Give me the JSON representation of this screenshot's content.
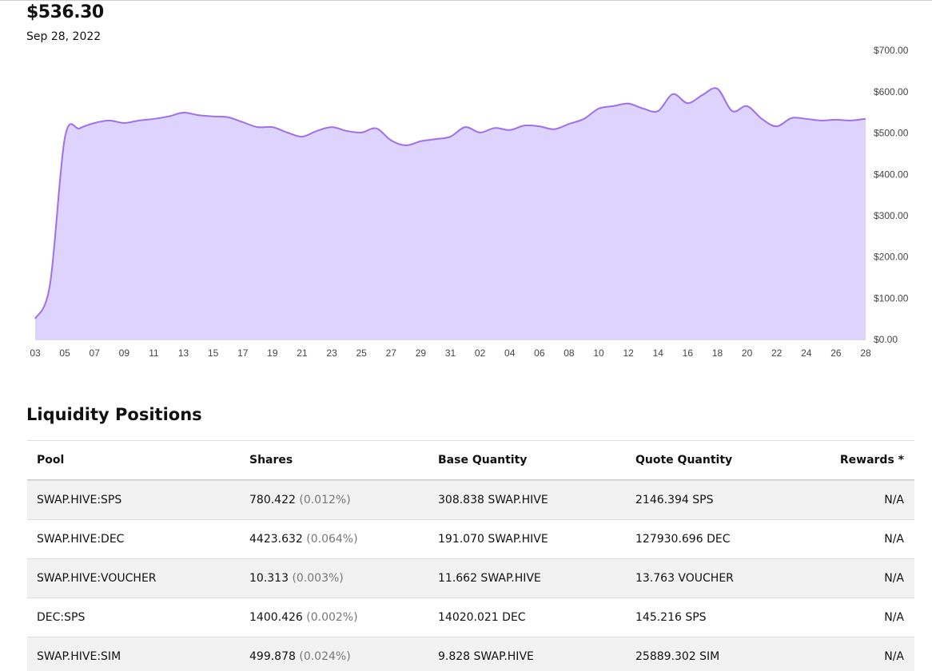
{
  "header": {
    "value": "$536.30",
    "date": "Sep 28, 2022"
  },
  "chart_data": {
    "type": "area",
    "categories": [
      "03",
      null,
      "05",
      null,
      "07",
      null,
      "09",
      null,
      "11",
      null,
      "13",
      null,
      "15",
      null,
      "17",
      null,
      "19",
      null,
      "21",
      null,
      "23",
      null,
      "25",
      null,
      "27",
      null,
      "29",
      null,
      "31",
      null,
      "02",
      null,
      "04",
      null,
      "06",
      null,
      "08",
      null,
      "10",
      null,
      "12",
      null,
      "14",
      null,
      "16",
      null,
      "18",
      null,
      "20",
      null,
      "22",
      null,
      "24",
      null,
      "26",
      null,
      "28"
    ],
    "values": [
      52,
      135,
      490,
      513,
      526,
      532,
      526,
      532,
      536,
      542,
      551,
      545,
      542,
      540,
      528,
      516,
      516,
      503,
      493,
      507,
      516,
      507,
      503,
      513,
      484,
      472,
      482,
      487,
      493,
      516,
      503,
      514,
      509,
      520,
      518,
      511,
      524,
      536,
      561,
      567,
      573,
      561,
      555,
      596,
      574,
      594,
      609,
      555,
      567,
      536,
      518,
      538,
      536,
      532,
      534,
      532,
      536.3
    ],
    "color": "#9f70e8",
    "fill_color": "#ddd3fc",
    "ylim": [
      0,
      700
    ],
    "yticks": [
      {
        "value": 0,
        "label": "$0.00"
      },
      {
        "value": 100,
        "label": "$100.00"
      },
      {
        "value": 200,
        "label": "$200.00"
      },
      {
        "value": 300,
        "label": "$300.00"
      },
      {
        "value": 400,
        "label": "$400.00"
      },
      {
        "value": 500,
        "label": "$500.00"
      },
      {
        "value": 600,
        "label": "$600.00"
      },
      {
        "value": 700,
        "label": "$700.00"
      }
    ],
    "grid": false
  },
  "section_title": "Liquidity Positions",
  "table": {
    "columns": [
      "Pool",
      "Shares",
      "Base Quantity",
      "Quote Quantity",
      "Rewards *"
    ],
    "rows": [
      {
        "pool": "SWAP.HIVE:SPS",
        "shares": "780.422",
        "share_pct": "(0.012%)",
        "base": "308.838 SWAP.HIVE",
        "quote": "2146.394 SPS",
        "rewards": "N/A"
      },
      {
        "pool": "SWAP.HIVE:DEC",
        "shares": "4423.632",
        "share_pct": "(0.064%)",
        "base": "191.070 SWAP.HIVE",
        "quote": "127930.696 DEC",
        "rewards": "N/A"
      },
      {
        "pool": "SWAP.HIVE:VOUCHER",
        "shares": "10.313",
        "share_pct": "(0.003%)",
        "base": "11.662 SWAP.HIVE",
        "quote": "13.763 VOUCHER",
        "rewards": "N/A"
      },
      {
        "pool": "DEC:SPS",
        "shares": "1400.426",
        "share_pct": "(0.002%)",
        "base": "14020.021 DEC",
        "quote": "145.216 SPS",
        "rewards": "N/A"
      },
      {
        "pool": "SWAP.HIVE:SIM",
        "shares": "499.878",
        "share_pct": "(0.024%)",
        "base": "9.828 SWAP.HIVE",
        "quote": "25889.302 SIM",
        "rewards": "N/A"
      }
    ]
  }
}
